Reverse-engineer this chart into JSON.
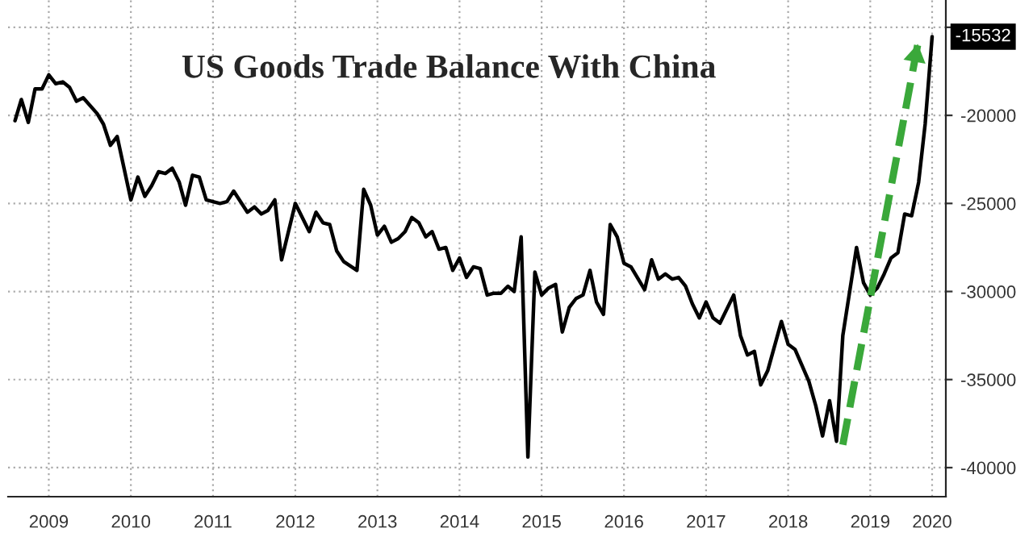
{
  "chart_data": {
    "type": "line",
    "title": "US Goods Trade Balance With China",
    "series": [
      {
        "color": "#000000",
        "x": [
          "2009-02",
          "2009-03",
          "2009-04",
          "2009-05",
          "2009-06",
          "2009-07",
          "2009-08",
          "2009-09",
          "2009-10",
          "2009-11",
          "2009-12",
          "2010-02",
          "2010-03",
          "2010-04",
          "2010-05",
          "2010-07",
          "2010-08",
          "2010-09",
          "2010-10",
          "2010-11",
          "2010-12",
          "2011-01",
          "2011-02",
          "2011-03",
          "2011-04",
          "2011-05",
          "2011-06",
          "2011-08",
          "2011-09",
          "2011-10",
          "2011-12",
          "2012-01",
          "2012-02",
          "2012-03",
          "2012-04",
          "2012-05",
          "2012-07",
          "2012-09",
          "2012-10",
          "2012-11",
          "2012-12",
          "2013-01",
          "2013-02",
          "2013-04",
          "2013-05",
          "2013-06",
          "2013-07",
          "2013-08",
          "2013-09",
          "2013-10",
          "2013-11",
          "2013-12",
          "2014-01",
          "2014-02",
          "2014-03",
          "2014-04",
          "2014-05",
          "2014-06",
          "2014-07",
          "2014-08",
          "2014-09",
          "2014-10",
          "2014-11",
          "2014-12",
          "2015-01",
          "2015-02",
          "2015-03",
          "2015-04",
          "2015-05",
          "2015-06",
          "2015-07",
          "2015-08",
          "2015-09",
          "2015-10",
          "2015-11",
          "2015-12",
          "2016-01",
          "2016-02",
          "2016-03",
          "2016-04",
          "2016-05",
          "2016-06",
          "2016-07",
          "2016-08",
          "2016-10",
          "2016-11",
          "2016-12",
          "2017-01",
          "2017-02",
          "2017-03",
          "2017-04",
          "2017-05",
          "2017-06",
          "2017-07",
          "2017-08",
          "2017-09",
          "2017-11",
          "2017-12",
          "2018-01",
          "2018-02",
          "2018-03",
          "2018-04",
          "2018-06",
          "2018-07",
          "2018-08",
          "2018-10",
          "2018-11",
          "2018-12",
          "2019-01",
          "2019-02",
          "2019-03",
          "2019-05",
          "2019-06",
          "2019-07",
          "2019-08",
          "2019-09",
          "2019-10",
          "2019-11",
          "2019-12",
          "2020-01",
          "2020-02",
          "2020-03",
          "2020-04"
        ],
        "values": [
          -20300,
          -19100,
          -20400,
          -18500,
          -18500,
          -17700,
          -18200,
          -18100,
          -18400,
          -19200,
          -19000,
          -19900,
          -20500,
          -21700,
          -21200,
          -24800,
          -23500,
          -24600,
          -24000,
          -23200,
          -23300,
          -23000,
          -23800,
          -25100,
          -23400,
          -23500,
          -24800,
          -25000,
          -24900,
          -24300,
          -25500,
          -25200,
          -25600,
          -25400,
          -24800,
          -28200,
          -25000,
          -26600,
          -25500,
          -26100,
          -26200,
          -27700,
          -28300,
          -28800,
          -24200,
          -25100,
          -26800,
          -26300,
          -27200,
          -27000,
          -26600,
          -25800,
          -26100,
          -26900,
          -26600,
          -27600,
          -27500,
          -28800,
          -28100,
          -29200,
          -28600,
          -28700,
          -30200,
          -30100,
          -30100,
          -29700,
          -30000,
          -26900,
          -39400,
          -28900,
          -30200,
          -29800,
          -29600,
          -32300,
          -30900,
          -30400,
          -30200,
          -28800,
          -30600,
          -31300,
          -26200,
          -26900,
          -28400,
          -28600,
          -29900,
          -28200,
          -29300,
          -29000,
          -29300,
          -29200,
          -29700,
          -30700,
          -31500,
          -30600,
          -31500,
          -31800,
          -30200,
          -32500,
          -33600,
          -33400,
          -35300,
          -34500,
          -31700,
          -33000,
          -33300,
          -35100,
          -36500,
          -38200,
          -36200,
          -38500,
          -32500,
          -27500,
          -29500,
          -30200,
          -29800,
          -29000,
          -28100,
          -27800,
          -25600,
          -25700,
          -23800,
          -20500,
          -15532
        ]
      },
      {
        "color": "#3aa83a",
        "line_style": "dashed",
        "x": [
          "2019-03",
          "2020-02"
        ],
        "values": [
          -38700,
          -15700
        ]
      }
    ],
    "xlim": [
      "2009-01",
      "2020-06"
    ],
    "xticks": [
      {
        "value": "2009-07",
        "label": "2009"
      },
      {
        "value": "2010-07",
        "label": "2010"
      },
      {
        "value": "2011-07",
        "label": "2011"
      },
      {
        "value": "2012-07",
        "label": "2012"
      },
      {
        "value": "2013-07",
        "label": "2013"
      },
      {
        "value": "2014-07",
        "label": "2014"
      },
      {
        "value": "2015-07",
        "label": "2015"
      },
      {
        "value": "2016-07",
        "label": "2016"
      },
      {
        "value": "2017-07",
        "label": "2017"
      },
      {
        "value": "2018-07",
        "label": "2018"
      },
      {
        "value": "2019-07",
        "label": "2019"
      },
      {
        "value": "2020-04",
        "label": "2020"
      }
    ],
    "ylim": [
      -41650,
      -13450
    ],
    "yticks": [
      -40000,
      -35000,
      -30000,
      -25000,
      -20000,
      {
        "value": -15000,
        "label": null
      }
    ],
    "annotations": [
      {
        "text": "-15532",
        "x": "2020-04",
        "y": -15532
      }
    ],
    "grid": true,
    "legend": false
  }
}
